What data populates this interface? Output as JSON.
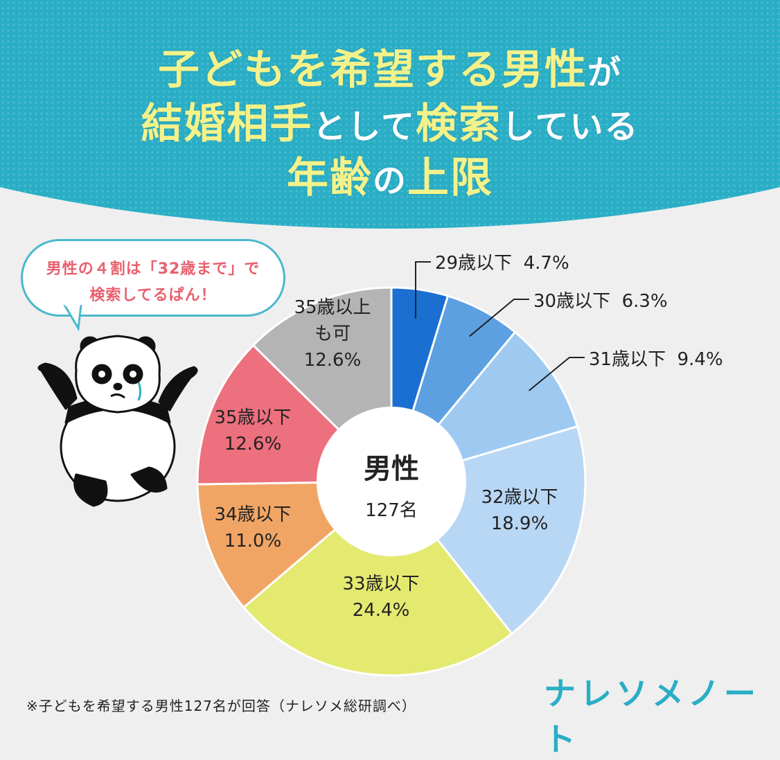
{
  "title": {
    "line1_hl": "子どもを希望する男性",
    "line1_rest": "が",
    "line2_a": "結婚相手",
    "line2_b": "として",
    "line2_c": "検索",
    "line2_d": "している",
    "line3_a": "年齢",
    "line3_b": "の",
    "line3_c": "上限"
  },
  "bubble": {
    "line1": "男性の４割は「32歳まで」で",
    "line2": "検索してるぱん！"
  },
  "colors": {
    "header": "#2aaec6",
    "title_highlight": "#f3f28a",
    "bubble_text": "#e8606f"
  },
  "chart_data": {
    "type": "pie",
    "donut": true,
    "center_label": "男性",
    "center_count": "127名",
    "slices": [
      {
        "name": "29歳以下",
        "value": 4.7,
        "label": "4.7%",
        "color": "#1a6fd1",
        "label_mode": "outside"
      },
      {
        "name": "30歳以下",
        "value": 6.3,
        "label": "6.3%",
        "color": "#5ca0e2",
        "label_mode": "outside"
      },
      {
        "name": "31歳以下",
        "value": 9.4,
        "label": "9.4%",
        "color": "#9ecaf1",
        "label_mode": "outside"
      },
      {
        "name": "32歳以下",
        "value": 18.9,
        "label": "18.9%",
        "color": "#b8d7f4",
        "label_mode": "inside"
      },
      {
        "name": "33歳以下",
        "value": 24.4,
        "label": "24.4%",
        "color": "#e4ea70",
        "label_mode": "inside"
      },
      {
        "name": "34歳以下",
        "value": 11.0,
        "label": "11.0%",
        "color": "#f1a565",
        "label_mode": "inside"
      },
      {
        "name": "35歳以下",
        "value": 12.6,
        "label": "12.6%",
        "color": "#ec707d",
        "label_mode": "inside"
      },
      {
        "name": "35歳以上も可",
        "value": 12.6,
        "label": "12.6%",
        "color": "#b4b4b4",
        "label_mode": "inside"
      }
    ]
  },
  "footnote": "※子どもを希望する男性127名が回答（ナレソメ総研調べ）",
  "logo": "ナレソメノート"
}
